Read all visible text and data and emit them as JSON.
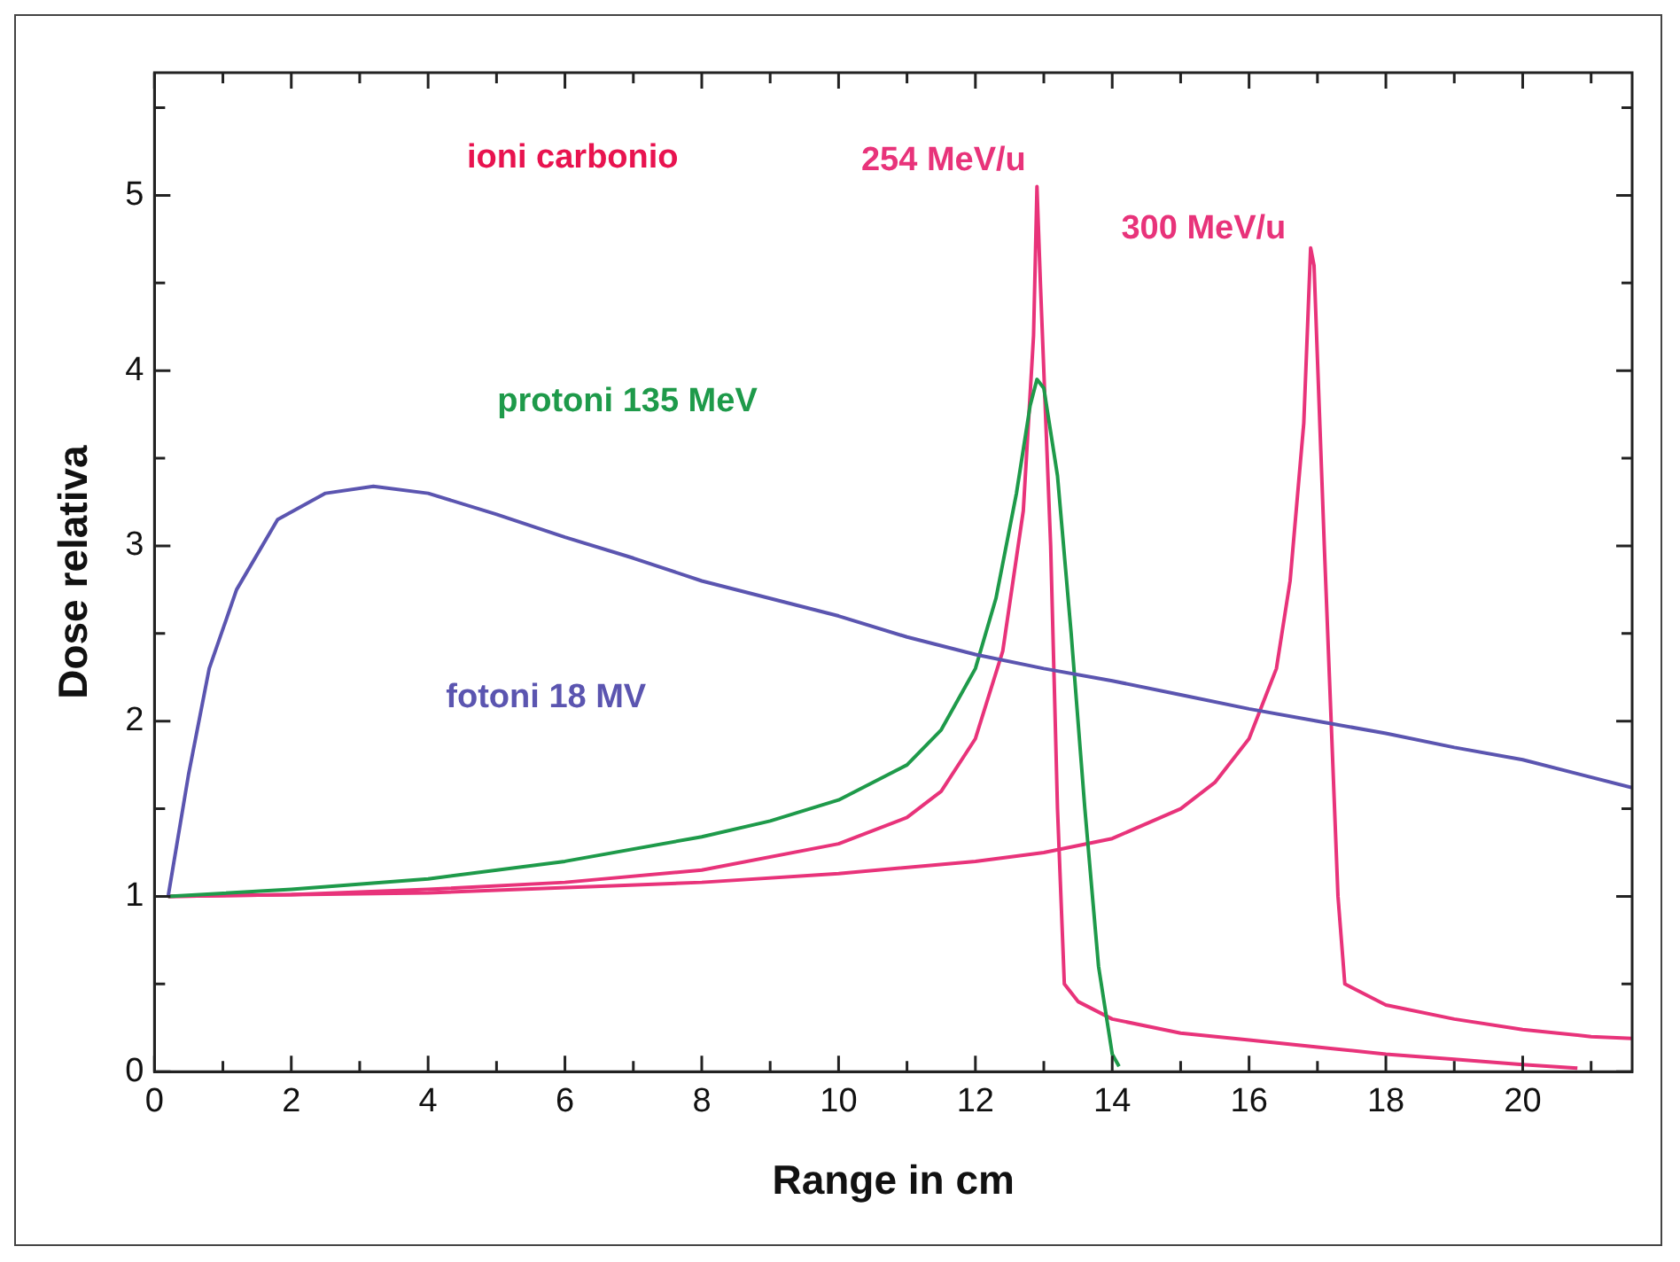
{
  "chart_data": {
    "type": "line",
    "xlabel": "Range in cm",
    "ylabel": "Dose relativa",
    "xlim": [
      0,
      21.6
    ],
    "ylim": [
      0,
      5.7
    ],
    "xticks": [
      0,
      {
        "value": 1,
        "label": null
      },
      2,
      {
        "value": 3,
        "label": null
      },
      4,
      {
        "value": 5,
        "label": null
      },
      6,
      {
        "value": 7,
        "label": null
      },
      8,
      {
        "value": 9,
        "label": null
      },
      10,
      {
        "value": 11,
        "label": null
      },
      12,
      {
        "value": 13,
        "label": null
      },
      14,
      {
        "value": 15,
        "label": null
      },
      16,
      {
        "value": 17,
        "label": null
      },
      18,
      {
        "value": 19,
        "label": null
      },
      20,
      {
        "value": 21,
        "label": null
      }
    ],
    "yticks": [
      0,
      {
        "value": 0.5,
        "label": null
      },
      1,
      {
        "value": 1.5,
        "label": null
      },
      2,
      {
        "value": 2.5,
        "label": null
      },
      3,
      {
        "value": 3.5,
        "label": null
      },
      4,
      {
        "value": 4.5,
        "label": null
      },
      5,
      {
        "value": 5.5,
        "label": null
      }
    ],
    "grid": false,
    "legend": false,
    "marker": "none",
    "line_style": "solid",
    "series": [
      {
        "name": "fotoni 18 MV",
        "color": "#5b55b0",
        "x": [
          0.2,
          0.5,
          0.8,
          1.2,
          1.8,
          2.5,
          3.2,
          4,
          5,
          6,
          7,
          8,
          9,
          10,
          11,
          12,
          13,
          14,
          15,
          16,
          17,
          18,
          19,
          20,
          21.6
        ],
        "values": [
          1.0,
          1.7,
          2.3,
          2.75,
          3.15,
          3.3,
          3.34,
          3.3,
          3.18,
          3.05,
          2.93,
          2.8,
          2.7,
          2.6,
          2.48,
          2.38,
          2.3,
          2.23,
          2.15,
          2.07,
          2.0,
          1.93,
          1.85,
          1.78,
          1.62
        ]
      },
      {
        "name": "protoni 135 MeV",
        "color": "#1e9a4a",
        "x": [
          0.2,
          2,
          4,
          6,
          8,
          9,
          10,
          11,
          11.5,
          12,
          12.3,
          12.6,
          12.8,
          12.9,
          13.0,
          13.2,
          13.4,
          13.6,
          13.8,
          14.0,
          14.1
        ],
        "values": [
          1.0,
          1.04,
          1.1,
          1.2,
          1.34,
          1.43,
          1.55,
          1.75,
          1.95,
          2.3,
          2.7,
          3.3,
          3.8,
          3.95,
          3.9,
          3.4,
          2.5,
          1.5,
          0.6,
          0.1,
          0.03
        ]
      },
      {
        "name": "254 MeV/u",
        "color": "#e8337a",
        "x": [
          0.2,
          2,
          4,
          6,
          8,
          10,
          11,
          11.5,
          12,
          12.4,
          12.7,
          12.85,
          12.9,
          12.95,
          13.1,
          13.2,
          13.3,
          13.5,
          14,
          15,
          16,
          17,
          18,
          19,
          20,
          20.8
        ],
        "values": [
          1.0,
          1.01,
          1.04,
          1.08,
          1.15,
          1.3,
          1.45,
          1.6,
          1.9,
          2.4,
          3.2,
          4.2,
          5.05,
          4.5,
          3.0,
          1.5,
          0.5,
          0.4,
          0.3,
          0.22,
          0.18,
          0.14,
          0.1,
          0.07,
          0.04,
          0.02
        ]
      },
      {
        "name": "300 MeV/u",
        "color": "#e8337a",
        "x": [
          0.2,
          4,
          8,
          10,
          12,
          13,
          14,
          15,
          15.5,
          16,
          16.4,
          16.6,
          16.8,
          16.9,
          16.95,
          17.1,
          17.3,
          17.4,
          18,
          19,
          20,
          21,
          21.6
        ],
        "values": [
          1.0,
          1.02,
          1.08,
          1.13,
          1.2,
          1.25,
          1.33,
          1.5,
          1.65,
          1.9,
          2.3,
          2.8,
          3.7,
          4.7,
          4.6,
          3.0,
          1.0,
          0.5,
          0.38,
          0.3,
          0.24,
          0.2,
          0.19
        ]
      }
    ],
    "annotations": [
      "ioni carbonio"
    ]
  }
}
